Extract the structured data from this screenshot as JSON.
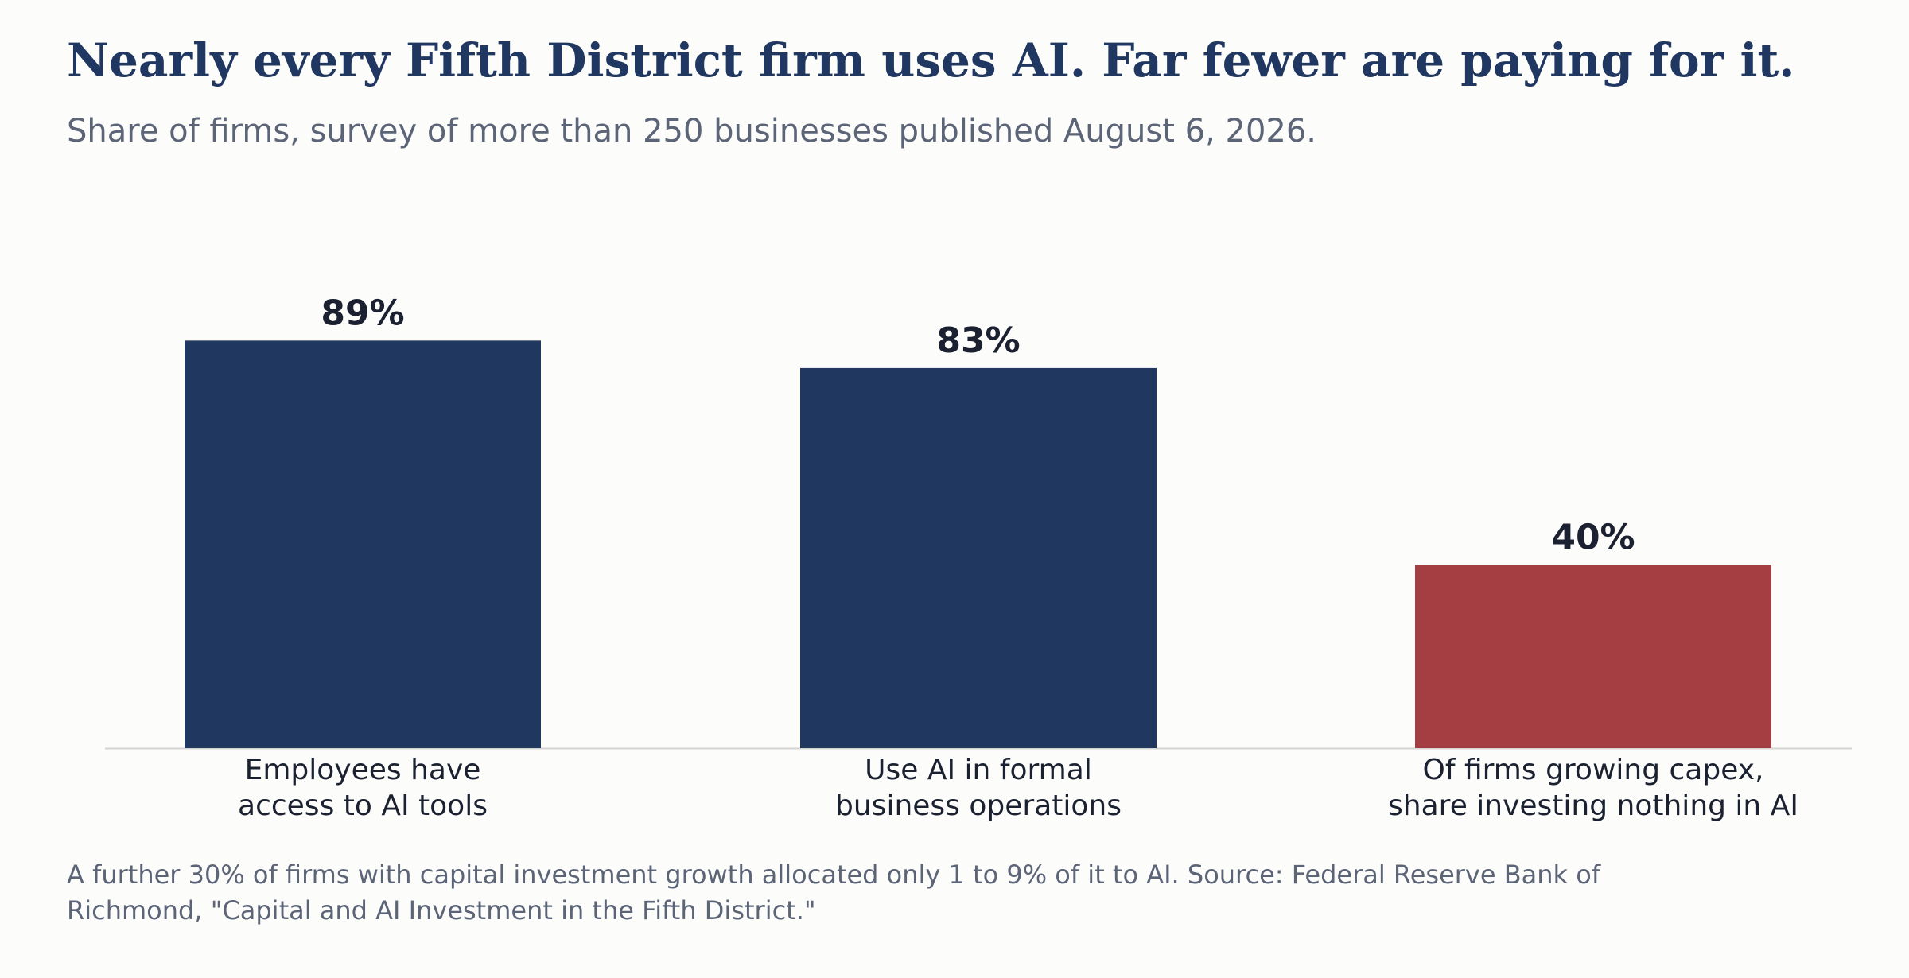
{
  "header": {
    "title": "Nearly every Fifth District firm uses AI. Far fewer are paying for it.",
    "subtitle": "Share of firms, survey of more than 250 businesses published August 6, 2026."
  },
  "footnote": "A further 30% of firms with capital investment growth allocated only 1 to 9% of it to AI. Source: Federal Reserve Bank of Richmond, \"Capital and AI Investment in the Fifth District.\"",
  "colors": {
    "primary_bar": "#20375f",
    "highlight_bar": "#a53e42",
    "title": "#1f3761",
    "baseline": "#d3d3d3"
  },
  "chart_data": {
    "type": "bar",
    "title": "Nearly every Fifth District firm uses AI. Far fewer are paying for it.",
    "subtitle": "Share of firms, survey of more than 250 businesses published August 6, 2026.",
    "categories": [
      [
        "Employees have",
        "access to AI tools"
      ],
      [
        "Use AI in formal",
        "business operations"
      ],
      [
        "Of firms growing capex,",
        "share investing nothing in AI"
      ]
    ],
    "values": [
      89,
      83,
      40
    ],
    "value_labels": [
      "89%",
      "83%",
      "40%"
    ],
    "bar_colors": [
      "#20375f",
      "#20375f",
      "#a53e42"
    ],
    "unit": "%",
    "ylim": [
      0,
      100
    ],
    "grid": false,
    "legend": "none"
  }
}
